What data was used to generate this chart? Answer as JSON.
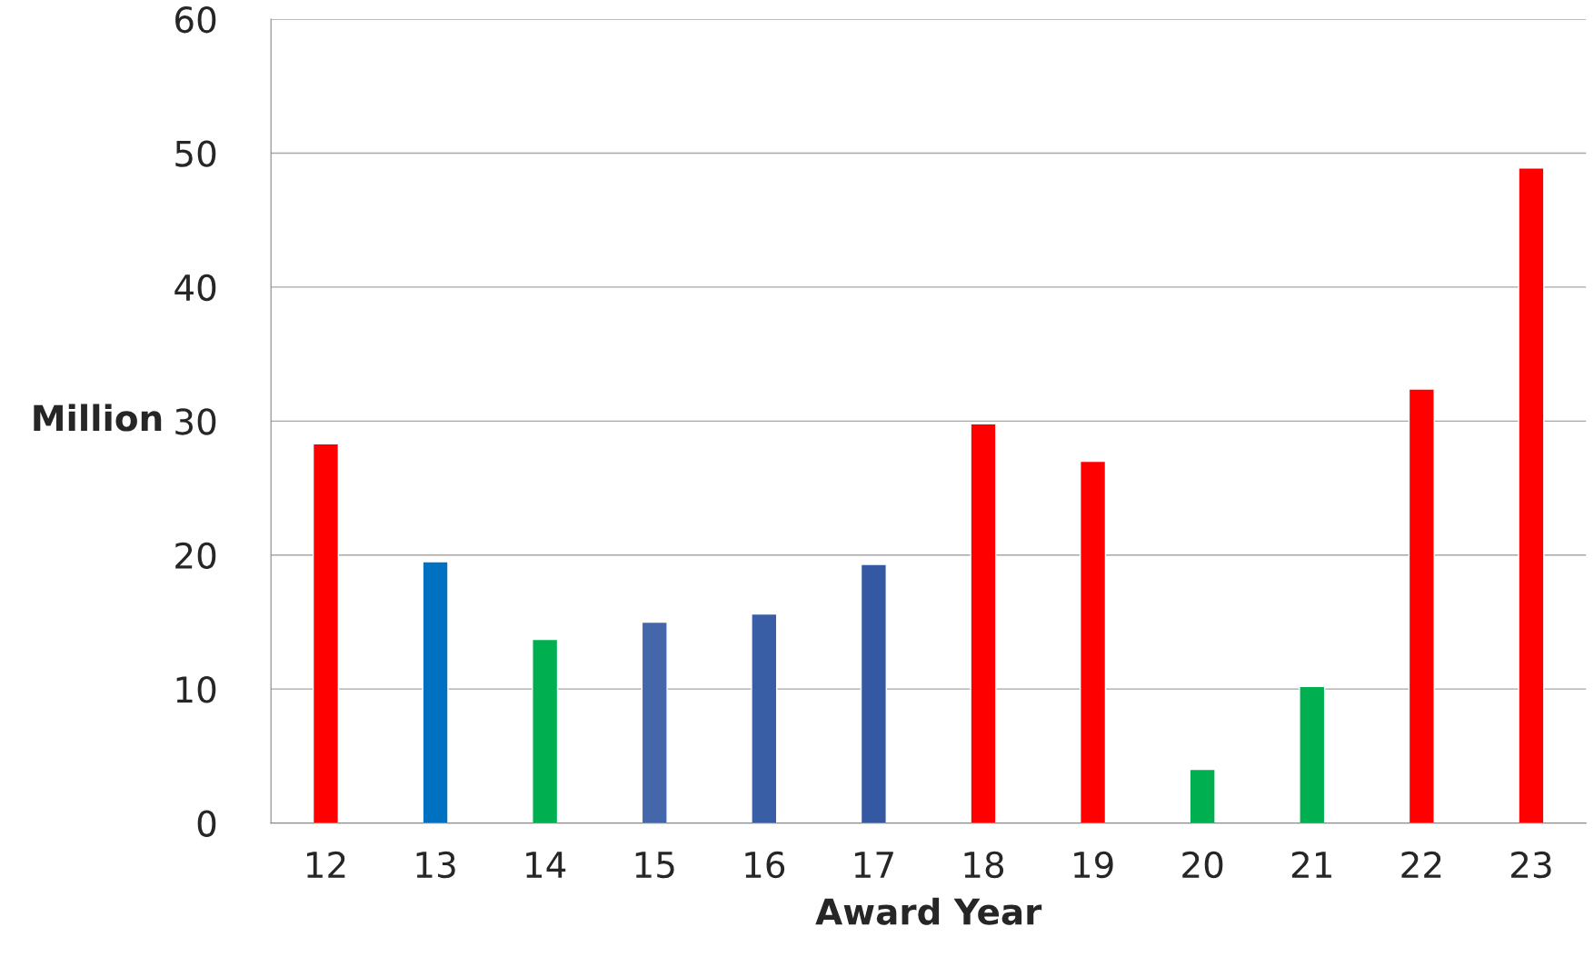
{
  "chart_data": {
    "type": "bar",
    "xlabel": "Award Year",
    "ylabel": "Million",
    "categories": [
      "12",
      "13",
      "14",
      "15",
      "16",
      "17",
      "18",
      "19",
      "20",
      "21",
      "22",
      "23"
    ],
    "values": [
      28.3,
      19.5,
      13.7,
      15.0,
      15.6,
      19.3,
      29.8,
      27.0,
      4.0,
      10.2,
      32.4,
      48.9
    ],
    "colors": [
      "#ff0000",
      "#0070c0",
      "#00b050",
      "#4466aa",
      "#3a5ea6",
      "#3459a2",
      "#ff0000",
      "#ff0000",
      "#00b050",
      "#00b050",
      "#ff0000",
      "#ff0000"
    ],
    "ylim": [
      0,
      60
    ],
    "yticks": [
      0,
      10,
      20,
      30,
      40,
      50,
      60
    ],
    "grid": "y",
    "legend": false
  }
}
